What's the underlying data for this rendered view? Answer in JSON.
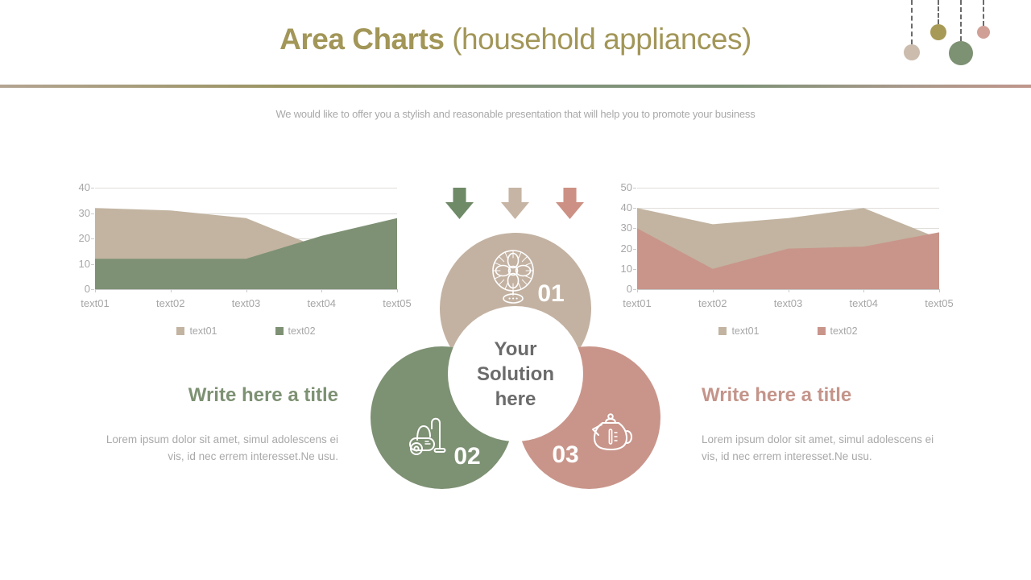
{
  "header": {
    "title_emphasis": "Area Charts",
    "title_suffix": " (household appliances)",
    "subtitle": "We would like to offer you a stylish and reasonable presentation that will help you to promote your business"
  },
  "chart_data": [
    {
      "type": "area",
      "title": "",
      "categories": [
        "text01",
        "text02",
        "text03",
        "text04",
        "text05"
      ],
      "series": [
        {
          "name": "text01",
          "color": "#c2b4a1",
          "values": [
            32,
            31,
            28,
            16,
            13
          ]
        },
        {
          "name": "text02",
          "color": "#7e9174",
          "values": [
            12,
            12,
            12,
            21,
            28
          ]
        }
      ],
      "ylim": [
        0,
        40
      ],
      "yticks": [
        0,
        10,
        20,
        30,
        40
      ],
      "grid": true,
      "legend_position": "bottom"
    },
    {
      "type": "area",
      "title": "",
      "categories": [
        "text01",
        "text02",
        "text03",
        "text04",
        "text05"
      ],
      "series": [
        {
          "name": "text01",
          "color": "#c2b4a1",
          "values": [
            40,
            32,
            35,
            40,
            25
          ]
        },
        {
          "name": "text02",
          "color": "#c9958a",
          "values": [
            30,
            10,
            20,
            21,
            28
          ]
        }
      ],
      "ylim": [
        0,
        50
      ],
      "yticks": [
        0,
        10,
        20,
        30,
        40,
        50
      ],
      "grid": true,
      "legend_position": "bottom"
    }
  ],
  "diagram": {
    "arrows": [
      {
        "name": "green-arrow",
        "color": "#6f8a67"
      },
      {
        "name": "tan-arrow",
        "color": "#c6b5a4"
      },
      {
        "name": "pink-arrow",
        "color": "#cc9184"
      }
    ],
    "center_label": "Your Solution here",
    "items": [
      {
        "number": "01",
        "icon": "fan-icon",
        "color": "#c3b2a2"
      },
      {
        "number": "02",
        "icon": "vacuum-cleaner-icon",
        "color": "#7d9173"
      },
      {
        "number": "03",
        "icon": "kettle-icon",
        "color": "#c9958a"
      }
    ]
  },
  "sections": {
    "left": {
      "title": "Write here a title",
      "title_color": "#7d9173",
      "body": "Lorem ipsum dolor sit amet, simul adolescens ei vis, id nec errem interesset.Ne usu."
    },
    "right": {
      "title": "Write here a title",
      "title_color": "#c4948a",
      "body": "Lorem ipsum dolor sit amet, simul adolescens ei vis, id nec errem interesset.Ne usu."
    }
  },
  "ornaments": [
    {
      "name": "beige-ball",
      "color": "#cbbcae",
      "size": 20,
      "drop": 55,
      "x": 1132
    },
    {
      "name": "olive-ball",
      "color": "#a79a56",
      "size": 20,
      "drop": 30,
      "x": 1165
    },
    {
      "name": "green-ball",
      "color": "#7d9173",
      "size": 30,
      "drop": 51,
      "x": 1193
    },
    {
      "name": "pink-ball",
      "color": "#d0a097",
      "size": 16,
      "drop": 32,
      "x": 1221
    }
  ],
  "colors": {
    "title": "#a29658",
    "subtitle": "#a9a9a9",
    "axis_text": "#a6a6a6",
    "center_text": "#6b6b6b"
  }
}
